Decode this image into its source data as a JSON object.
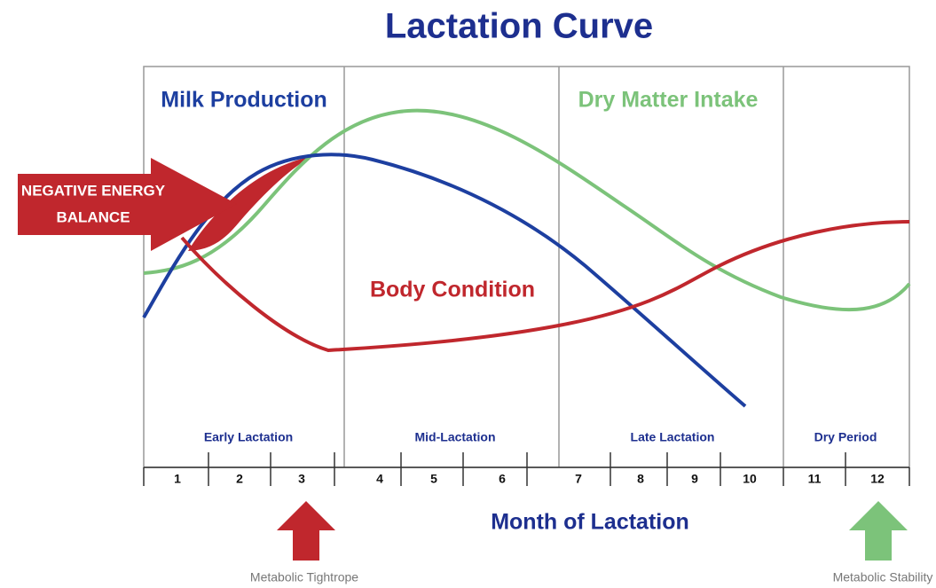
{
  "title": "Lactation Curve",
  "curves": [
    {
      "label": "Milk Production"
    },
    {
      "label": "Dry Matter Intake"
    },
    {
      "label": "Body Condition"
    }
  ],
  "callout": {
    "lines": [
      "NEGATIVE ENERGY",
      "BALANCE"
    ]
  },
  "phases": [
    "Early Lactation",
    "Mid-Lactation",
    "Late Lactation",
    "Dry Period"
  ],
  "months": [
    "1",
    "2",
    "3",
    "4",
    "5",
    "6",
    "7",
    "8",
    "9",
    "10",
    "11",
    "12"
  ],
  "axis_label": "Month of Lactation",
  "markers": [
    "Metabolic Tightrope",
    "Metabolic Stability"
  ]
}
